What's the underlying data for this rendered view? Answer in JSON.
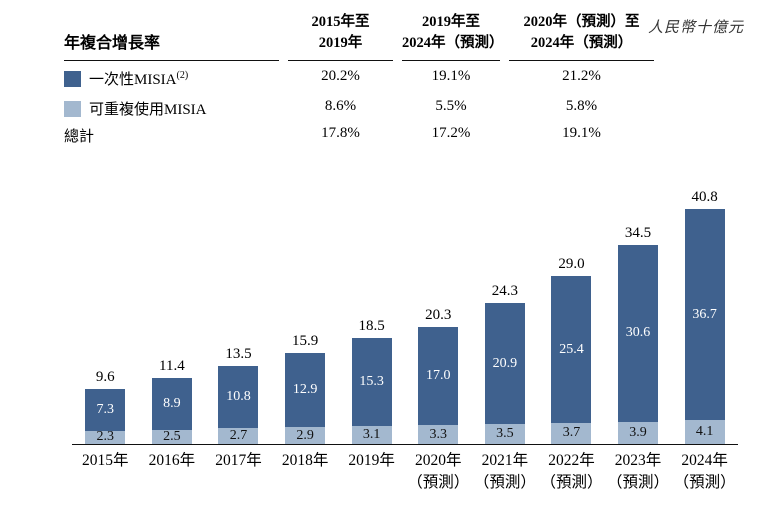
{
  "unit_label": "人民幣十億元",
  "colors": {
    "dark": "#3f618e",
    "light": "#a3b8cf"
  },
  "table": {
    "title": "年複合增長率",
    "col_headers": [
      {
        "line1": "2015年至",
        "line2": "2019年"
      },
      {
        "line1": "2019年至",
        "line2": "2024年（預測）"
      },
      {
        "line1": "2020年（預測）至",
        "line2": "2024年（預測）"
      }
    ],
    "rows": [
      {
        "label": "一次性MISIA",
        "sup": "(2)",
        "values": [
          "20.2%",
          "19.1%",
          "21.2%"
        ]
      },
      {
        "label": "可重複使用MISIA",
        "sup": "",
        "values": [
          "8.6%",
          "5.5%",
          "5.8%"
        ]
      },
      {
        "label": "總計",
        "sup": "",
        "values": [
          "17.8%",
          "17.2%",
          "19.1%"
        ]
      }
    ]
  },
  "chart_data": {
    "type": "bar",
    "stacked": true,
    "categories": [
      [
        "2015年"
      ],
      [
        "2016年"
      ],
      [
        "2017年"
      ],
      [
        "2018年"
      ],
      [
        "2019年"
      ],
      [
        "2020年",
        "（預測）"
      ],
      [
        "2021年",
        "（預測）"
      ],
      [
        "2022年",
        "（預測）"
      ],
      [
        "2023年",
        "（預測）"
      ],
      [
        "2024年",
        "（預測）"
      ]
    ],
    "series": [
      {
        "name": "一次性MISIA",
        "values": [
          7.3,
          8.9,
          10.8,
          12.9,
          15.3,
          17.0,
          20.9,
          25.4,
          30.6,
          36.7
        ]
      },
      {
        "name": "可重複使用MISIA",
        "values": [
          2.3,
          2.5,
          2.7,
          2.9,
          3.1,
          3.3,
          3.5,
          3.7,
          3.9,
          4.1
        ]
      }
    ],
    "totals": [
      9.6,
      11.4,
      13.5,
      15.9,
      18.5,
      20.3,
      24.3,
      29.0,
      34.5,
      40.8
    ],
    "title": "",
    "xlabel": "",
    "ylabel": "人民幣十億元",
    "ylim": [
      0,
      42
    ],
    "grid": false,
    "legend_position": "top-table"
  }
}
